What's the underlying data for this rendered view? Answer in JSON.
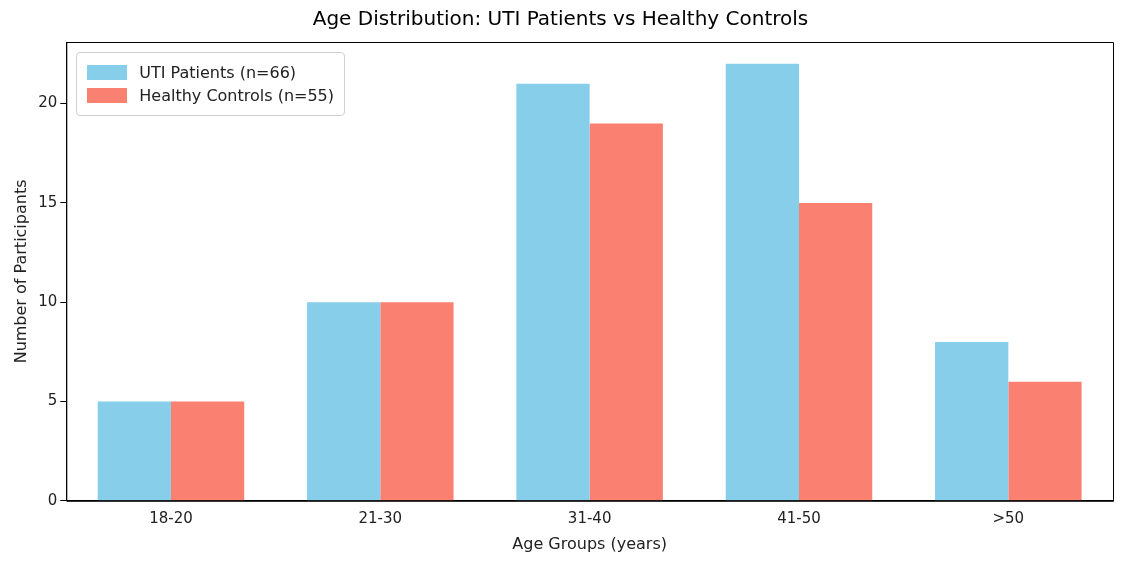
{
  "chart_data": {
    "type": "bar",
    "title": "Age Distribution: UTI Patients vs Healthy Controls",
    "xlabel": "Age Groups (years)",
    "ylabel": "Number of Participants",
    "categories": [
      "18-20",
      "21-30",
      "31-40",
      "41-50",
      ">50"
    ],
    "series": [
      {
        "name": "UTI Patients (n=66)",
        "color": "#87ceeb",
        "values": [
          5,
          10,
          21,
          22,
          8
        ]
      },
      {
        "name": "Healthy Controls (n=55)",
        "color": "#fa8072",
        "values": [
          5,
          10,
          19,
          15,
          6
        ]
      }
    ],
    "ylim": [
      0,
      23.1
    ],
    "yticks": [
      0,
      5,
      10,
      15,
      20
    ],
    "grid": false,
    "legend": "top left"
  }
}
